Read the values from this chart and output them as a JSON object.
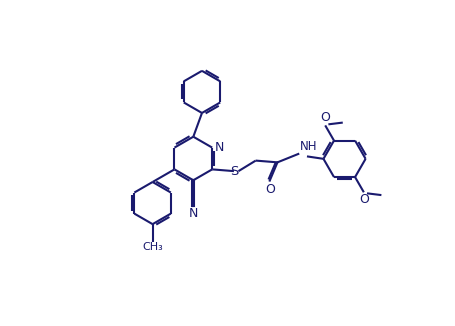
{
  "bg_color": "#ffffff",
  "line_color": "#1a1a6e",
  "line_width": 1.5,
  "figsize": [
    4.56,
    3.26
  ],
  "dpi": 100,
  "xlim": [
    0,
    10
  ],
  "ylim": [
    0,
    7.15
  ]
}
